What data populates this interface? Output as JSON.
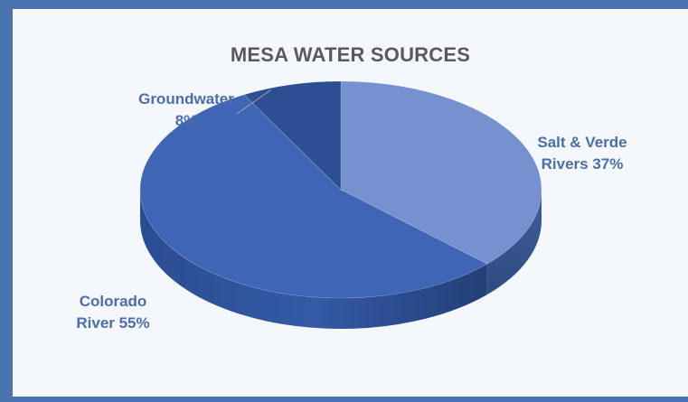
{
  "chart_data": {
    "type": "pie",
    "title": "MESA WATER SOURCES",
    "slices": [
      {
        "label": "Salt & Verde Rivers",
        "value": 37,
        "color": "#7591cf"
      },
      {
        "label": "Colorado River",
        "value": 55,
        "color": "#3f66b6"
      },
      {
        "label": "Groundwater",
        "value": 8,
        "color": "#2c4e93"
      }
    ],
    "data_labels": {
      "salt": [
        "Salt & Verde",
        "Rivers 37%"
      ],
      "colorado": [
        "Colorado",
        "River 55%"
      ],
      "ground": [
        "Groundwater",
        "8%"
      ]
    },
    "style": "3d-pie"
  },
  "colors": {
    "frame": "#4a74b0",
    "panel": "#f4f7fb",
    "title": "#5a5a5a",
    "labels": "#4a6fa8"
  }
}
